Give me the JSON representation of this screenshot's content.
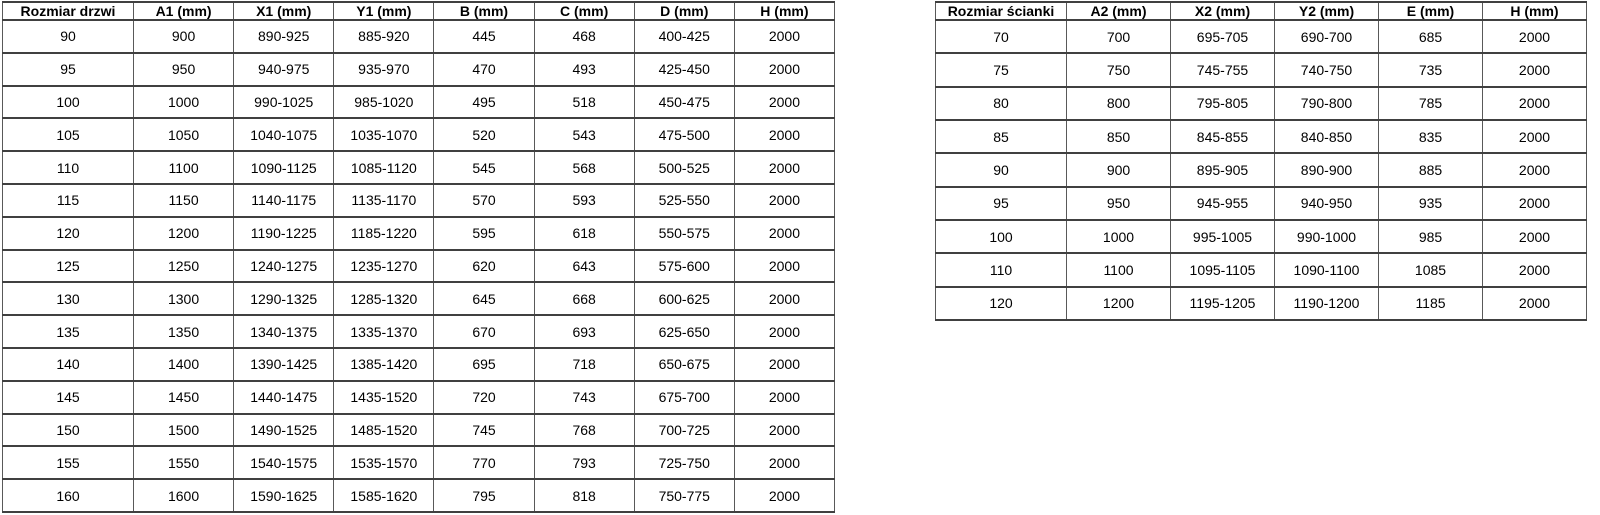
{
  "tables": {
    "door": {
      "name": "door-size-table",
      "headers": [
        "Rozmiar drzwi",
        "A1 (mm)",
        "X1 (mm)",
        "Y1 (mm)",
        "B (mm)",
        "C (mm)",
        "D (mm)",
        "H (mm)"
      ],
      "rows": [
        [
          "90",
          "900",
          "890-925",
          "885-920",
          "445",
          "468",
          "400-425",
          "2000"
        ],
        [
          "95",
          "950",
          "940-975",
          "935-970",
          "470",
          "493",
          "425-450",
          "2000"
        ],
        [
          "100",
          "1000",
          "990-1025",
          "985-1020",
          "495",
          "518",
          "450-475",
          "2000"
        ],
        [
          "105",
          "1050",
          "1040-1075",
          "1035-1070",
          "520",
          "543",
          "475-500",
          "2000"
        ],
        [
          "110",
          "1100",
          "1090-1125",
          "1085-1120",
          "545",
          "568",
          "500-525",
          "2000"
        ],
        [
          "115",
          "1150",
          "1140-1175",
          "1135-1170",
          "570",
          "593",
          "525-550",
          "2000"
        ],
        [
          "120",
          "1200",
          "1190-1225",
          "1185-1220",
          "595",
          "618",
          "550-575",
          "2000"
        ],
        [
          "125",
          "1250",
          "1240-1275",
          "1235-1270",
          "620",
          "643",
          "575-600",
          "2000"
        ],
        [
          "130",
          "1300",
          "1290-1325",
          "1285-1320",
          "645",
          "668",
          "600-625",
          "2000"
        ],
        [
          "135",
          "1350",
          "1340-1375",
          "1335-1370",
          "670",
          "693",
          "625-650",
          "2000"
        ],
        [
          "140",
          "1400",
          "1390-1425",
          "1385-1420",
          "695",
          "718",
          "650-675",
          "2000"
        ],
        [
          "145",
          "1450",
          "1440-1475",
          "1435-1520",
          "720",
          "743",
          "675-700",
          "2000"
        ],
        [
          "150",
          "1500",
          "1490-1525",
          "1485-1520",
          "745",
          "768",
          "700-725",
          "2000"
        ],
        [
          "155",
          "1550",
          "1540-1575",
          "1535-1570",
          "770",
          "793",
          "725-750",
          "2000"
        ],
        [
          "160",
          "1600",
          "1590-1625",
          "1585-1620",
          "795",
          "818",
          "750-775",
          "2000"
        ]
      ]
    },
    "wall": {
      "name": "wall-size-table",
      "headers": [
        "Rozmiar ścianki",
        "A2 (mm)",
        "X2 (mm)",
        "Y2 (mm)",
        "E (mm)",
        "H (mm)"
      ],
      "rows": [
        [
          "70",
          "700",
          "695-705",
          "690-700",
          "685",
          "2000"
        ],
        [
          "75",
          "750",
          "745-755",
          "740-750",
          "735",
          "2000"
        ],
        [
          "80",
          "800",
          "795-805",
          "790-800",
          "785",
          "2000"
        ],
        [
          "85",
          "850",
          "845-855",
          "840-850",
          "835",
          "2000"
        ],
        [
          "90",
          "900",
          "895-905",
          "890-900",
          "885",
          "2000"
        ],
        [
          "95",
          "950",
          "945-955",
          "940-950",
          "935",
          "2000"
        ],
        [
          "100",
          "1000",
          "995-1005",
          "990-1000",
          "985",
          "2000"
        ],
        [
          "110",
          "1100",
          "1095-1105",
          "1090-1100",
          "1085",
          "2000"
        ],
        [
          "120",
          "1200",
          "1195-1205",
          "1190-1200",
          "1185",
          "2000"
        ]
      ]
    }
  },
  "colors": {
    "background": "#ffffff",
    "text": "#000000",
    "border_horizontal": "#404040",
    "border_vertical": "#595959"
  }
}
